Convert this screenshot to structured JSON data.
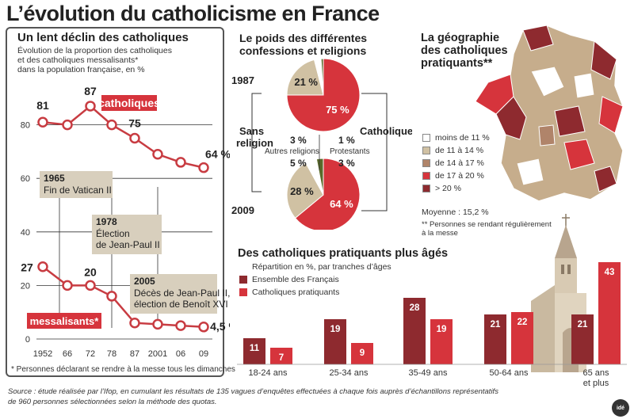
{
  "title": "L’évolution du catholicisme en France",
  "colors": {
    "dark_red": "#8e2a2f",
    "red": "#d6343c",
    "beige": "#d0c1a3",
    "box": "#d8cfbd",
    "olive": "#5a6b2a",
    "line": "#c83c42"
  },
  "line_panel": {
    "title": "Un lent déclin des catholiques",
    "subtitle_lines": [
      "Évolution de la proportion des catholiques",
      "et des catholiques messalisants*",
      "dans la population française, en %"
    ],
    "series_labels": {
      "catholiques": "catholiques",
      "messalisants": "messalisants*"
    },
    "point_labels": [
      {
        "text": "81",
        "series": "catholiques",
        "index": 0
      },
      {
        "text": "87",
        "series": "catholiques",
        "index": 2
      },
      {
        "text": "75",
        "series": "catholiques",
        "index": 4
      },
      {
        "text": "64 %",
        "series": "catholiques",
        "index": 7
      },
      {
        "text": "27",
        "series": "messalisants",
        "index": 0
      },
      {
        "text": "20",
        "series": "messalisants",
        "index": 2
      },
      {
        "text": "4,5 %",
        "series": "messalisants",
        "index": 7
      }
    ],
    "annotations": [
      {
        "year": "1965",
        "lines": [
          "Fin de Vatican II"
        ]
      },
      {
        "year": "1978",
        "lines": [
          "Élection",
          "de Jean-Paul II"
        ]
      },
      {
        "year": "2005",
        "lines": [
          "Décès de Jean-Paul II,",
          "élection de Benoît XVI"
        ]
      }
    ],
    "footnote": "* Personnes déclarant se rendre à la messe tous les dimanches"
  },
  "pie_panel": {
    "title_lines": [
      "Le poids des différentes",
      "confessions et religions"
    ],
    "left_label_lines": [
      "Sans",
      "religion"
    ],
    "right_label": "Catholiques",
    "other_religions_label": "Autres religions",
    "protestants_label": "Protestants",
    "years": [
      "1987",
      "2009"
    ],
    "labels_1987": [
      "75 %",
      "21 %",
      "3 %",
      "1 %"
    ],
    "labels_2009": [
      "64 %",
      "28 %",
      "5 %",
      "3 %"
    ]
  },
  "map_panel": {
    "title_lines": [
      "La géographie",
      "des catholiques",
      "pratiquants**"
    ],
    "legend": [
      {
        "label": "moins de 11 %",
        "color": "#ffffff"
      },
      {
        "label": "de 11 à 14 %",
        "color": "#d0c1a3"
      },
      {
        "label": "de 14 à 17 %",
        "color": "#b0846a"
      },
      {
        "label": "de 17 à 20 %",
        "color": "#d6343c"
      },
      {
        "label": "> 20 %",
        "color": "#8e2a2f"
      }
    ],
    "average": "Moyenne : 15,2 %",
    "footnote_lines": [
      "** Personnes se rendant régulièrement",
      "à la messe"
    ]
  },
  "bar_panel": {
    "title": "Des catholiques pratiquants plus âgés",
    "subtitle_lines": [
      "Répartition en %, par tranches d’âges"
    ],
    "legend": [
      "Ensemble des Français",
      "Catholiques pratiquants"
    ]
  },
  "source_lines": [
    "Source : étude réalisée par l’Ifop, en cumulant les résultats de 135 vagues d’enquêtes effectuées à chaque fois auprès d’échantillons représentatifs",
    "de 960 personnes sélectionnées selon la méthode des quotas."
  ],
  "logo": "idé",
  "chart_data": [
    {
      "type": "line",
      "x": [
        "1952",
        "66",
        "72",
        "78",
        "87",
        "2001",
        "06",
        "09"
      ],
      "series": [
        {
          "name": "catholiques",
          "values": [
            81,
            80,
            87,
            80,
            75,
            69,
            66,
            64
          ]
        },
        {
          "name": "messalisants*",
          "values": [
            27,
            20,
            20,
            16,
            6,
            5.5,
            5,
            4.5
          ]
        }
      ],
      "ylim": [
        0,
        90
      ],
      "yticks": [
        "0",
        "20",
        "40",
        "60",
        "80"
      ],
      "grid": true
    },
    {
      "type": "pie",
      "title": "1987",
      "slices": [
        {
          "name": "Catholiques",
          "value": 75
        },
        {
          "name": "Sans religion",
          "value": 21
        },
        {
          "name": "Autres religions",
          "value": 3
        },
        {
          "name": "Protestants",
          "value": 1
        }
      ]
    },
    {
      "type": "pie",
      "title": "2009",
      "slices": [
        {
          "name": "Catholiques",
          "value": 64
        },
        {
          "name": "Sans religion",
          "value": 28
        },
        {
          "name": "Autres religions",
          "value": 5
        },
        {
          "name": "Protestants",
          "value": 3
        }
      ]
    },
    {
      "type": "bar",
      "categories": [
        "18-24 ans",
        "25-34 ans",
        "35-49 ans",
        "50-64 ans",
        "65 ans et plus"
      ],
      "series": [
        {
          "name": "Ensemble des Français",
          "values": [
            11,
            19,
            28,
            21,
            21
          ]
        },
        {
          "name": "Catholiques pratiquants",
          "values": [
            7,
            9,
            19,
            22,
            43
          ]
        }
      ]
    }
  ]
}
